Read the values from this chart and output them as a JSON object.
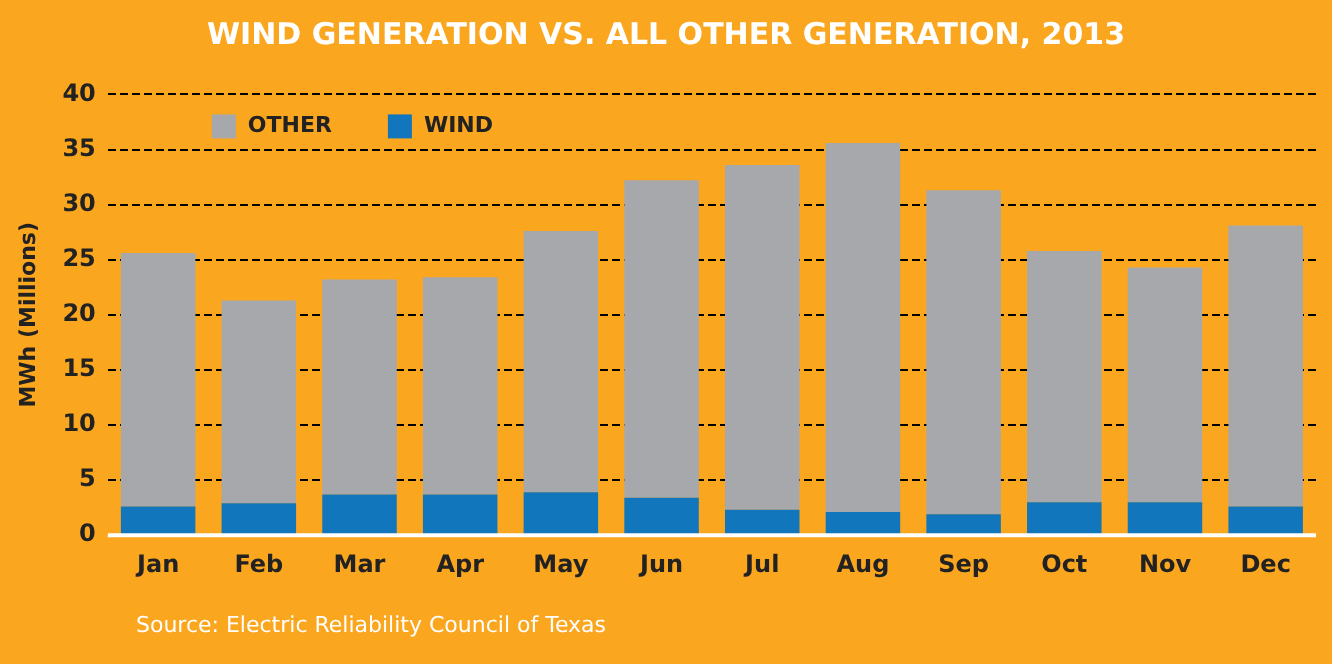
{
  "chart_data": {
    "type": "bar",
    "title": "WIND GENERATION VS. ALL OTHER GENERATION, 2013",
    "ylabel": "MWh (Millions)",
    "categories": [
      "Jan",
      "Feb",
      "Mar",
      "Apr",
      "May",
      "Jun",
      "Jul",
      "Aug",
      "Sep",
      "Oct",
      "Nov",
      "Dec"
    ],
    "series": [
      {
        "name": "WIND",
        "color": "#1276bd",
        "values": [
          2.6,
          2.9,
          3.7,
          3.7,
          3.9,
          3.4,
          2.3,
          2.1,
          1.9,
          3.0,
          3.0,
          2.6
        ]
      },
      {
        "name": "OTHER",
        "color": "#a7a8ac",
        "values": [
          23.0,
          18.4,
          19.5,
          19.7,
          23.7,
          28.8,
          31.3,
          33.5,
          29.4,
          22.8,
          21.3,
          25.5
        ]
      }
    ],
    "stacked": true,
    "ylim": [
      0,
      40
    ],
    "yticks": [
      0,
      5,
      10,
      15,
      20,
      25,
      30,
      35,
      40
    ],
    "grid": "y",
    "legend": "top left",
    "annotations": [
      "Source: Electric Reliability Council of Texas"
    ]
  }
}
